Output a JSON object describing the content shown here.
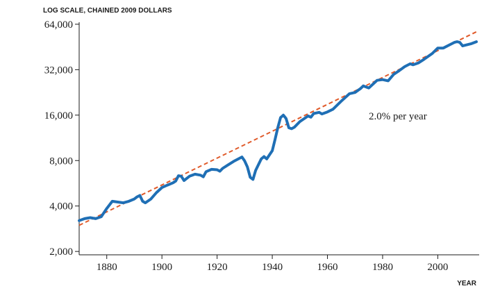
{
  "chart_data": {
    "type": "line",
    "ylabel": "LOG SCALE, CHAINED 2009 DOLLARS",
    "xlabel": "YEAR",
    "y_scale": "log2",
    "xlim": [
      1870,
      2015
    ],
    "ylim": [
      1900,
      66000
    ],
    "x_ticks": [
      1880,
      1900,
      1920,
      1940,
      1960,
      1980,
      2000
    ],
    "x_tick_labels": [
      "1880",
      "1900",
      "1920",
      "1940",
      "1960",
      "1980",
      "2000"
    ],
    "y_ticks": [
      2000,
      4000,
      8000,
      16000,
      32000,
      64000
    ],
    "y_tick_labels": [
      "2,000",
      "4,000",
      "8,000",
      "16,000",
      "32,000",
      "64,000"
    ],
    "annotation": "2.0% per year",
    "colors": {
      "series": "#1f6fb5",
      "trend": "#e05a2a"
    },
    "series": [
      {
        "style": "solid",
        "x": [
          1870,
          1872,
          1874,
          1876,
          1878,
          1880,
          1882,
          1884,
          1886,
          1888,
          1890,
          1891,
          1892,
          1893,
          1894,
          1896,
          1898,
          1900,
          1902,
          1904,
          1905,
          1906,
          1907,
          1908,
          1910,
          1912,
          1914,
          1915,
          1916,
          1918,
          1920,
          1921,
          1922,
          1924,
          1926,
          1929,
          1930,
          1931,
          1932,
          1933,
          1934,
          1936,
          1937,
          1938,
          1940,
          1941,
          1942,
          1943,
          1944,
          1945,
          1946,
          1947,
          1948,
          1950,
          1953,
          1954,
          1955,
          1957,
          1958,
          1960,
          1962,
          1965,
          1968,
          1970,
          1972,
          1973,
          1974,
          1975,
          1978,
          1980,
          1982,
          1984,
          1986,
          1988,
          1990,
          1991,
          1993,
          1995,
          1998,
          2000,
          2002,
          2004,
          2006,
          2007,
          2008,
          2009,
          2010,
          2012,
          2014
        ],
        "y": [
          3200,
          3300,
          3350,
          3300,
          3400,
          3850,
          4300,
          4250,
          4200,
          4300,
          4450,
          4600,
          4700,
          4300,
          4200,
          4450,
          4900,
          5300,
          5500,
          5700,
          5850,
          6350,
          6300,
          5900,
          6300,
          6500,
          6400,
          6250,
          6750,
          7000,
          6950,
          6800,
          7100,
          7500,
          7900,
          8450,
          7950,
          7250,
          6200,
          6000,
          6900,
          8200,
          8500,
          8200,
          9300,
          11000,
          13200,
          15400,
          16000,
          15200,
          13200,
          13000,
          13300,
          14500,
          15800,
          15500,
          16400,
          16700,
          16300,
          16800,
          17500,
          19800,
          22200,
          22600,
          24000,
          25000,
          24600,
          24200,
          27200,
          27500,
          27000,
          29800,
          31500,
          33500,
          35000,
          34500,
          35500,
          37500,
          41000,
          44500,
          44500,
          46500,
          48500,
          49000,
          48500,
          46000,
          46500,
          47500,
          49000
        ]
      },
      {
        "style": "dashed",
        "x": [
          1870,
          2014
        ],
        "y": [
          2980,
          57000
        ]
      }
    ]
  }
}
